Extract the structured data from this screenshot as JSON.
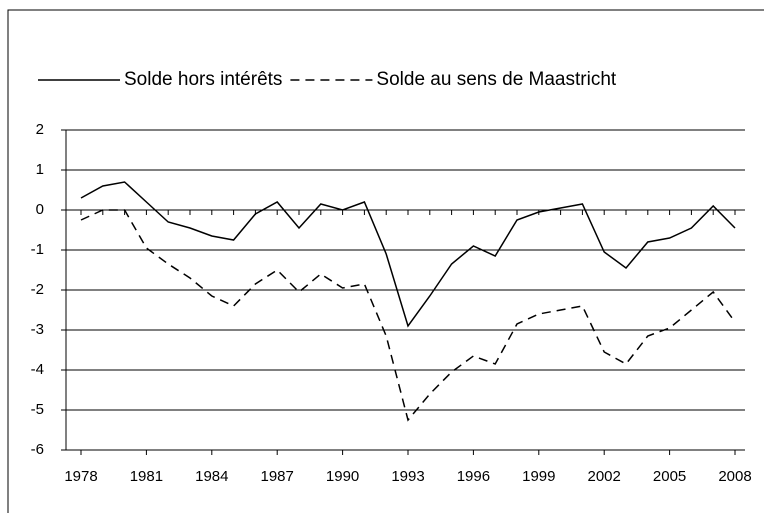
{
  "chart_data": {
    "type": "line",
    "x": [
      1978,
      1979,
      1980,
      1981,
      1982,
      1983,
      1984,
      1985,
      1986,
      1987,
      1988,
      1989,
      1990,
      1991,
      1992,
      1993,
      1994,
      1995,
      1996,
      1997,
      1998,
      1999,
      2000,
      2001,
      2002,
      2003,
      2004,
      2005,
      2006,
      2007,
      2008
    ],
    "series": [
      {
        "name": "Solde hors intérêts",
        "color": "#000000",
        "dash": "solid",
        "values": [
          0.3,
          0.6,
          0.7,
          0.2,
          -0.3,
          -0.45,
          -0.65,
          -0.75,
          -0.1,
          0.2,
          -0.45,
          0.15,
          0.0,
          0.2,
          -1.1,
          -2.9,
          -2.15,
          -1.35,
          -0.9,
          -1.15,
          -0.25,
          -0.05,
          0.05,
          0.15,
          -1.05,
          -1.45,
          -0.8,
          -0.7,
          -0.45,
          0.1,
          -0.45
        ]
      },
      {
        "name": "Solde au sens de Maastricht",
        "color": "#000000",
        "dash": "dashed",
        "values": [
          -0.25,
          0.0,
          0.0,
          -0.95,
          -1.35,
          -1.7,
          -2.15,
          -2.4,
          -1.85,
          -1.5,
          -2.05,
          -1.6,
          -1.95,
          -1.85,
          -3.15,
          -5.25,
          -4.6,
          -4.05,
          -3.65,
          -3.85,
          -2.85,
          -2.6,
          -2.5,
          -2.4,
          -3.55,
          -3.85,
          -3.15,
          -2.95,
          -2.5,
          -2.05,
          -2.8
        ]
      }
    ],
    "xlim": [
      1978,
      2008
    ],
    "xticks": [
      1978,
      1981,
      1984,
      1987,
      1990,
      1993,
      1996,
      1999,
      2002,
      2005,
      2008
    ],
    "ylim": [
      -6,
      2
    ],
    "yticks": [
      -6,
      -5,
      -4,
      -3,
      -2,
      -1,
      0,
      1,
      2
    ],
    "grid": true,
    "legend": "top"
  }
}
